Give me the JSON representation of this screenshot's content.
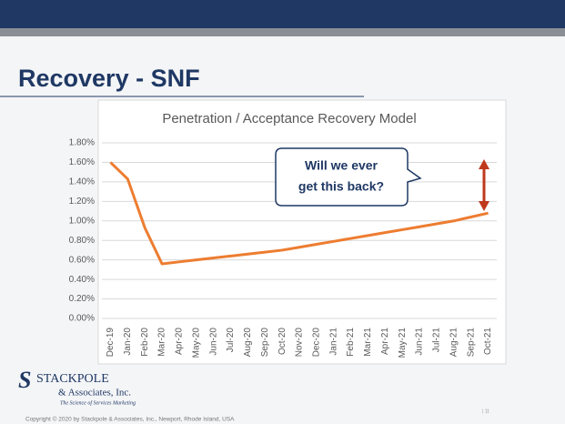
{
  "slide_title": "Recovery - SNF",
  "callout": [
    "Will we ever",
    "get this back?"
  ],
  "logo": {
    "name": "STACKPOLE",
    "line2": "& Associates, Inc.",
    "tagline": "The Science of Services Marketing"
  },
  "page_number": "| 11",
  "copyright": "Copyright © 2020 by Stackpole & Associates, Inc., Newport, Rhode Island, USA",
  "chart_data": {
    "type": "line",
    "title": "Penetration / Acceptance Recovery Model",
    "categories": [
      "Dec-19",
      "Jan-20",
      "Feb-20",
      "Mar-20",
      "Apr-20",
      "May-20",
      "Jun-20",
      "Jul-20",
      "Aug-20",
      "Sep-20",
      "Oct-20",
      "Nov-20",
      "Dec-20",
      "Jan-21",
      "Feb-21",
      "Mar-21",
      "Apr-21",
      "May-21",
      "Jun-21",
      "Jul-21",
      "Aug-21",
      "Sep-21",
      "Oct-21"
    ],
    "values": [
      1.6,
      1.43,
      0.93,
      0.56,
      0.58,
      0.6,
      0.62,
      0.64,
      0.66,
      0.68,
      0.7,
      0.73,
      0.76,
      0.79,
      0.82,
      0.85,
      0.88,
      0.91,
      0.94,
      0.97,
      1.0,
      1.04,
      1.08
    ],
    "color": "#ed7d31",
    "ylim": [
      0,
      1.8
    ],
    "yticks": [
      {
        "value": 0,
        "label": "0.00%"
      },
      {
        "value": 0.2,
        "label": "0.20%"
      },
      {
        "value": 0.4,
        "label": "0.40%"
      },
      {
        "value": 0.6,
        "label": "0.60%"
      },
      {
        "value": 0.8,
        "label": "0.80%"
      },
      {
        "value": 1.0,
        "label": "1.00%"
      },
      {
        "value": 1.2,
        "label": "1.20%"
      },
      {
        "value": 1.4,
        "label": "1.40%"
      },
      {
        "value": 1.6,
        "label": "1.60%"
      },
      {
        "value": 1.8,
        "label": "1.80%"
      }
    ],
    "grid": true
  }
}
